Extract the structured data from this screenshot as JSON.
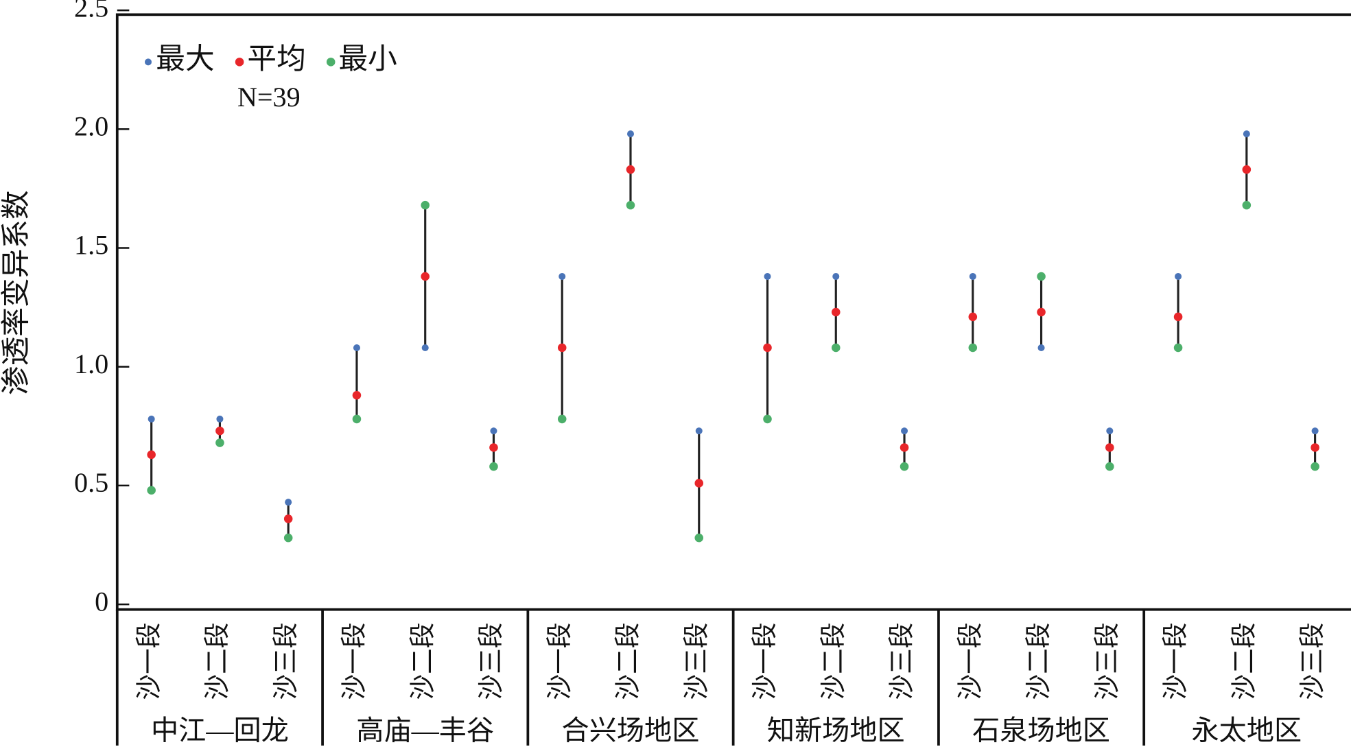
{
  "chart_data": {
    "type": "range-dot",
    "y_label": "渗透率变异系数",
    "annotation": "N=39",
    "legend": "top-left",
    "categories": [
      "沙一段",
      "沙二段",
      "沙三段",
      "沙一段",
      "沙二段",
      "沙三段",
      "沙一段",
      "沙二段",
      "沙三段",
      "沙一段",
      "沙二段",
      "沙三段",
      "沙一段",
      "沙二段",
      "沙三段",
      "沙一段",
      "沙二段",
      "沙三段"
    ],
    "groups": [
      "中江—回龙",
      "高庙—丰谷",
      "合兴场地区",
      "知新场地区",
      "石泉场地区",
      "永太地区"
    ],
    "series": [
      {
        "name": "最大",
        "color": "#4a74b8",
        "values": [
          0.78,
          0.78,
          0.43,
          1.08,
          1.08,
          0.73,
          1.38,
          1.98,
          0.73,
          1.38,
          1.38,
          0.73,
          1.38,
          1.08,
          0.73,
          1.38,
          1.98,
          0.73
        ]
      },
      {
        "name": "平均",
        "color": "#e8262a",
        "values": [
          0.63,
          0.73,
          0.36,
          0.88,
          1.38,
          0.66,
          1.08,
          1.83,
          0.51,
          1.08,
          1.23,
          0.66,
          1.21,
          1.23,
          0.66,
          1.21,
          1.83,
          0.66
        ]
      },
      {
        "name": "最小",
        "color": "#4caf6a",
        "values": [
          0.48,
          0.68,
          0.28,
          0.78,
          1.68,
          0.58,
          0.78,
          1.68,
          0.28,
          0.78,
          1.08,
          0.58,
          1.08,
          1.38,
          0.58,
          1.08,
          1.68,
          0.58
        ]
      }
    ],
    "ylim": [
      0,
      2.5
    ],
    "yticks": [
      0,
      0.5,
      {
        "value": 1,
        "label": "1.0"
      },
      1.5,
      {
        "value": 2,
        "label": "2.0"
      },
      2.5
    ]
  }
}
